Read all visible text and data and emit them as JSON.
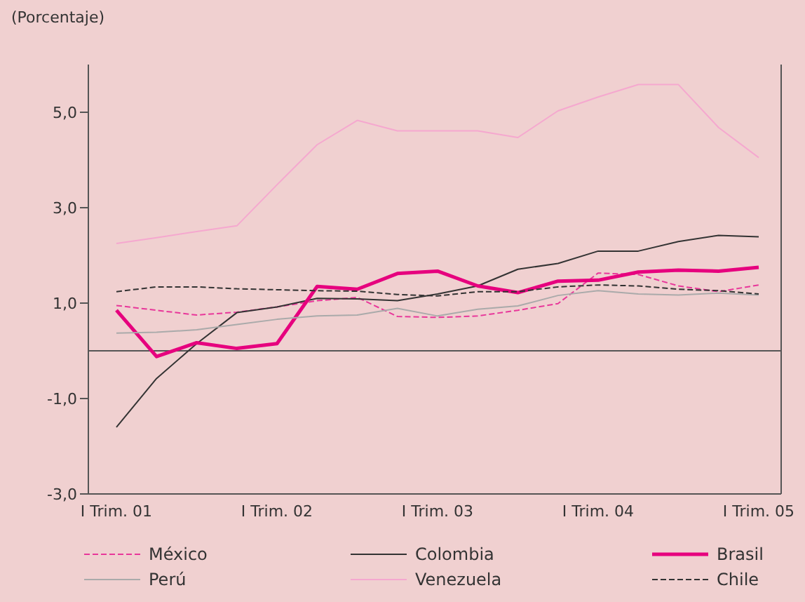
{
  "chart_data": {
    "type": "line",
    "ylabel": "(Porcentaje)",
    "categories": [
      "I Trim. 01",
      null,
      null,
      null,
      "I Trim. 02",
      null,
      null,
      null,
      "I Trim. 03",
      null,
      null,
      null,
      "I Trim. 04",
      null,
      null,
      null,
      "I Trim. 05"
    ],
    "ylim": [
      -3,
      6
    ],
    "yticks": [
      {
        "value": -3,
        "label": "-3,0"
      },
      {
        "value": -1,
        "label": "-1,0"
      },
      {
        "value": 1,
        "label": "1,0"
      },
      {
        "value": 3,
        "label": "3,0"
      },
      {
        "value": 5,
        "label": "5,0"
      }
    ],
    "legend": "bottom",
    "marker": "none",
    "ref_lines": [
      {
        "axis": "y",
        "value": 0,
        "color": "#555555"
      }
    ],
    "series": [
      {
        "name": "México",
        "color": "#e8379a",
        "line_style": "dashed",
        "values": [
          0.95,
          0.85,
          0.75,
          0.81,
          0.92,
          1.05,
          1.12,
          0.72,
          0.7,
          0.73,
          0.85,
          0.99,
          1.63,
          1.6,
          1.36,
          1.24,
          1.38
        ]
      },
      {
        "name": "Colombia",
        "color": "#333333",
        "line_style": "solid",
        "values": [
          -1.6,
          -0.58,
          0.15,
          0.8,
          0.92,
          1.1,
          1.09,
          1.05,
          1.19,
          1.36,
          1.71,
          1.83,
          2.09,
          2.09,
          2.29,
          2.42,
          2.39
        ]
      },
      {
        "name": "Brasil",
        "color": "#e6007e",
        "line_style": "solid",
        "values": [
          0.85,
          -0.12,
          0.17,
          0.05,
          0.15,
          1.35,
          1.29,
          1.62,
          1.67,
          1.36,
          1.22,
          1.46,
          1.48,
          1.65,
          1.69,
          1.67,
          1.75
        ]
      },
      {
        "name": "Perú",
        "color": "#aaaaaa",
        "line_style": "solid",
        "values": [
          0.37,
          0.39,
          0.44,
          0.55,
          0.66,
          0.73,
          0.75,
          0.89,
          0.73,
          0.87,
          0.94,
          1.16,
          1.26,
          1.19,
          1.17,
          1.21,
          1.17
        ]
      },
      {
        "name": "Venezuela",
        "color": "#f5a8cf",
        "line_style": "solid",
        "values": [
          2.25,
          2.37,
          2.5,
          2.62,
          3.48,
          4.32,
          4.83,
          4.61,
          4.61,
          4.61,
          4.47,
          5.03,
          5.32,
          5.58,
          5.58,
          4.68,
          4.05
        ]
      },
      {
        "name": "Chile",
        "color": "#333333",
        "line_style": "dashed",
        "values": [
          1.24,
          1.34,
          1.34,
          1.3,
          1.28,
          1.26,
          1.25,
          1.18,
          1.15,
          1.24,
          1.24,
          1.34,
          1.38,
          1.36,
          1.29,
          1.26,
          1.19
        ]
      }
    ]
  }
}
